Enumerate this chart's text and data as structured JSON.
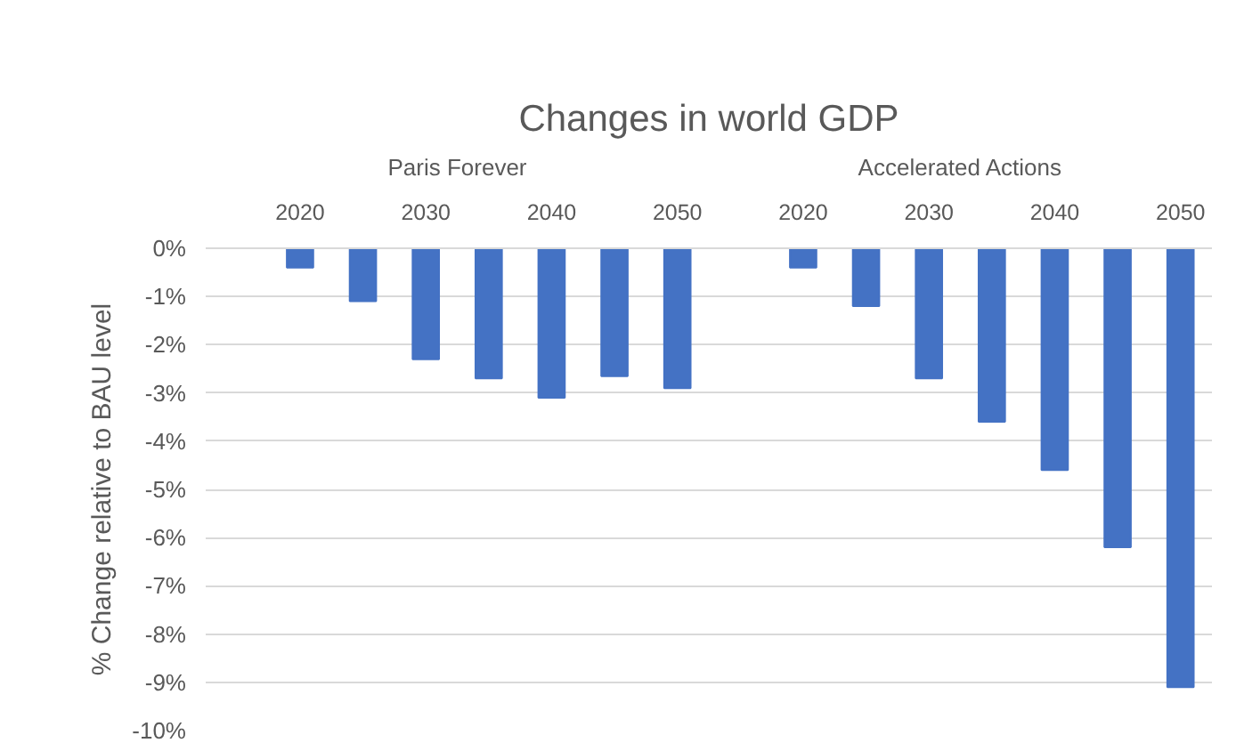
{
  "chart_data": {
    "type": "bar",
    "title": "Changes in world GDP",
    "ylabel": "% Change relative to BAU level",
    "categories": [
      null,
      "2020",
      null,
      "2030",
      null,
      "2040",
      null,
      "2050",
      null,
      "2020",
      null,
      "2030",
      null,
      "2040",
      null,
      "2050"
    ],
    "series": [
      {
        "name": "Paris Forever",
        "color": "#4472c4",
        "values": [
          null,
          -0.4,
          -1.1,
          -2.3,
          -2.7,
          -3.1,
          -2.65,
          -2.9,
          null,
          null,
          null,
          null,
          null,
          null,
          null,
          null
        ]
      },
      {
        "name": "Accelerated Actions",
        "color": "#4472c4",
        "values": [
          null,
          null,
          null,
          null,
          null,
          null,
          null,
          null,
          null,
          -0.4,
          -1.2,
          -2.7,
          -3.6,
          -4.6,
          -6.2,
          -9.1
        ]
      }
    ],
    "ylim": [
      -10,
      0
    ],
    "yticks": [
      {
        "value": 0,
        "label": "0%"
      },
      {
        "value": -1,
        "label": "-1%"
      },
      {
        "value": -2,
        "label": "-2%"
      },
      {
        "value": -3,
        "label": "-3%"
      },
      {
        "value": -4,
        "label": "-4%"
      },
      {
        "value": -5,
        "label": "-5%"
      },
      {
        "value": -6,
        "label": "-6%"
      },
      {
        "value": -7,
        "label": "-7%"
      },
      {
        "value": -8,
        "label": "-8%"
      },
      {
        "value": -9,
        "label": "-9%"
      },
      {
        "value": -10,
        "label": "-10%"
      }
    ],
    "grid": "y"
  }
}
